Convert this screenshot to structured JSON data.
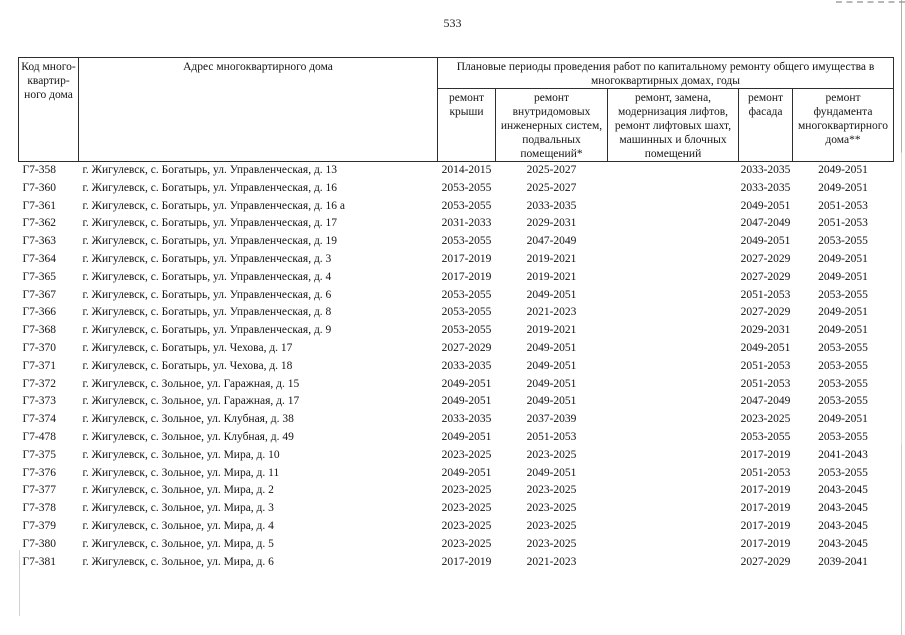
{
  "page": {
    "number": "533"
  },
  "table": {
    "header": {
      "code": "Код много-\nквартир-\nного дома",
      "address": "Адрес многоквартирного дома",
      "group": "Плановые периоды проведения работ по капитальному ремонту общего имущества в многоквартирных домах, годы",
      "sub": [
        "ремонт крыши",
        "ремонт внутридомовых инженерных систем, подвальных помещений*",
        "ремонт, замена, модернизация лифтов, ремонт лифтовых шахт, машинных и блочных помещений",
        "ремонт фасада",
        "ремонт фундамента многоквартирного дома**"
      ]
    },
    "rows": [
      [
        "Г7-358",
        "г. Жигулевск, с. Богатырь, ул. Управленческая, д. 13",
        "2014-2015",
        "2025-2027",
        "",
        "2033-2035",
        "2049-2051"
      ],
      [
        "Г7-360",
        "г. Жигулевск, с. Богатырь, ул. Управленческая, д. 16",
        "2053-2055",
        "2025-2027",
        "",
        "2033-2035",
        "2049-2051"
      ],
      [
        "Г7-361",
        "г. Жигулевск, с. Богатырь, ул. Управленческая, д. 16 а",
        "2053-2055",
        "2033-2035",
        "",
        "2049-2051",
        "2051-2053"
      ],
      [
        "Г7-362",
        "г. Жигулевск, с. Богатырь, ул. Управленческая, д. 17",
        "2031-2033",
        "2029-2031",
        "",
        "2047-2049",
        "2051-2053"
      ],
      [
        "Г7-363",
        "г. Жигулевск, с. Богатырь, ул. Управленческая, д. 19",
        "2053-2055",
        "2047-2049",
        "",
        "2049-2051",
        "2053-2055"
      ],
      [
        "Г7-364",
        "г. Жигулевск, с. Богатырь, ул. Управленческая, д. 3",
        "2017-2019",
        "2019-2021",
        "",
        "2027-2029",
        "2049-2051"
      ],
      [
        "Г7-365",
        "г. Жигулевск, с. Богатырь, ул. Управленческая, д. 4",
        "2017-2019",
        "2019-2021",
        "",
        "2027-2029",
        "2049-2051"
      ],
      [
        "Г7-367",
        "г. Жигулевск, с. Богатырь, ул. Управленческая, д. 6",
        "2053-2055",
        "2049-2051",
        "",
        "2051-2053",
        "2053-2055"
      ],
      [
        "Г7-366",
        "г. Жигулевск, с. Богатырь, ул. Управленческая, д. 8",
        "2053-2055",
        "2021-2023",
        "",
        "2027-2029",
        "2049-2051"
      ],
      [
        "Г7-368",
        "г. Жигулевск, с. Богатырь, ул. Управленческая, д. 9",
        "2053-2055",
        "2019-2021",
        "",
        "2029-2031",
        "2049-2051"
      ],
      [
        "Г7-370",
        "г. Жигулевск, с. Богатырь, ул. Чехова, д. 17",
        "2027-2029",
        "2049-2051",
        "",
        "2049-2051",
        "2053-2055"
      ],
      [
        "Г7-371",
        "г. Жигулевск, с. Богатырь, ул. Чехова, д. 18",
        "2033-2035",
        "2049-2051",
        "",
        "2051-2053",
        "2053-2055"
      ],
      [
        "Г7-372",
        "г. Жигулевск, с. Зольное, ул. Гаражная, д. 15",
        "2049-2051",
        "2049-2051",
        "",
        "2051-2053",
        "2053-2055"
      ],
      [
        "Г7-373",
        "г. Жигулевск, с. Зольное, ул. Гаражная, д. 17",
        "2049-2051",
        "2049-2051",
        "",
        "2047-2049",
        "2053-2055"
      ],
      [
        "Г7-374",
        "г. Жигулевск, с. Зольное, ул. Клубная, д. 38",
        "2033-2035",
        "2037-2039",
        "",
        "2023-2025",
        "2049-2051"
      ],
      [
        "Г7-478",
        "г. Жигулевск, с. Зольное, ул. Клубная, д. 49",
        "2049-2051",
        "2051-2053",
        "",
        "2053-2055",
        "2053-2055"
      ],
      [
        "Г7-375",
        "г. Жигулевск, с. Зольное, ул. Мира, д. 10",
        "2023-2025",
        "2023-2025",
        "",
        "2017-2019",
        "2041-2043"
      ],
      [
        "Г7-376",
        "г. Жигулевск, с. Зольное, ул. Мира, д. 11",
        "2049-2051",
        "2049-2051",
        "",
        "2051-2053",
        "2053-2055"
      ],
      [
        "Г7-377",
        "г. Жигулевск, с. Зольное, ул. Мира, д. 2",
        "2023-2025",
        "2023-2025",
        "",
        "2017-2019",
        "2043-2045"
      ],
      [
        "Г7-378",
        "г. Жигулевск, с. Зольное, ул. Мира, д. 3",
        "2023-2025",
        "2023-2025",
        "",
        "2017-2019",
        "2043-2045"
      ],
      [
        "Г7-379",
        "г. Жигулевск, с. Зольное, ул. Мира, д. 4",
        "2023-2025",
        "2023-2025",
        "",
        "2017-2019",
        "2043-2045"
      ],
      [
        "Г7-380",
        "г. Жигулевск, с. Зольное, ул. Мира, д. 5",
        "2023-2025",
        "2023-2025",
        "",
        "2017-2019",
        "2043-2045"
      ],
      [
        "Г7-381",
        "г. Жигулевск, с. Зольное, ул. Мира, д. 6",
        "2017-2019",
        "2021-2023",
        "",
        "2027-2029",
        "2039-2041"
      ]
    ]
  }
}
